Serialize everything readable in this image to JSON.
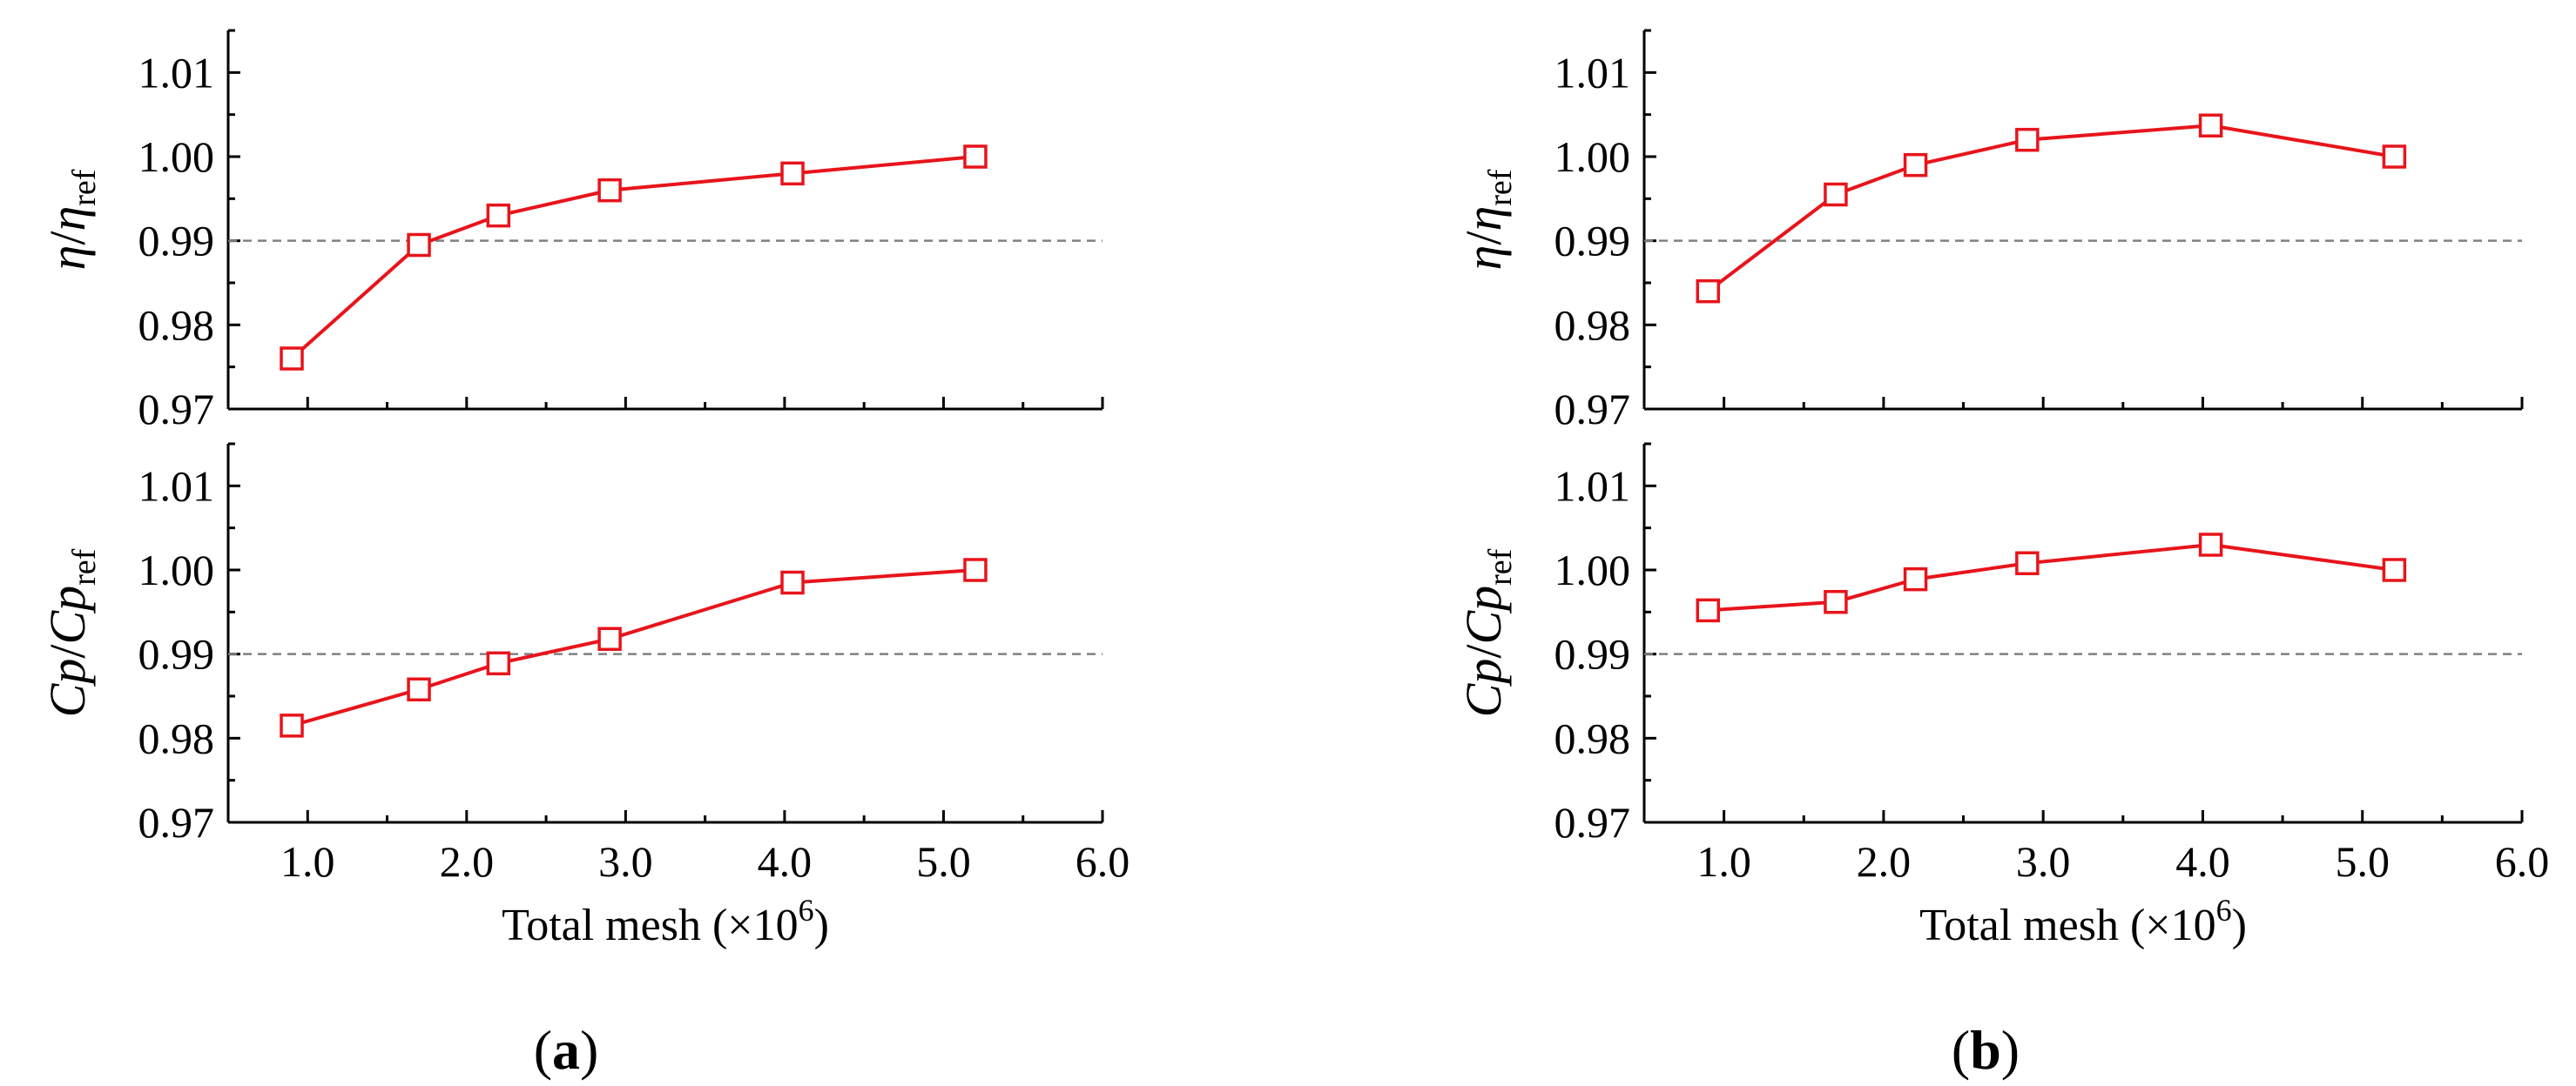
{
  "colors": {
    "series": "#e8141b",
    "reference": "#808080",
    "axis": "#000000"
  },
  "panels": [
    {
      "label_open": "(",
      "label_letter": "a",
      "label_close": ")",
      "xlabel_main": "Total mesh (×10",
      "xlabel_exp": "6",
      "xlabel_close": ")",
      "x_tick_labels": [
        "1.0",
        "2.0",
        "3.0",
        "4.0",
        "5.0",
        "6.0"
      ],
      "charts": [
        {
          "name": "efficiency",
          "ylabel_num": "η",
          "ylabel_slash": "/",
          "ylabel_den": "η",
          "ylabel_sub": "ref",
          "y_tick_labels": [
            "0.97",
            "0.98",
            "0.99",
            "1.00",
            "1.01"
          ]
        },
        {
          "name": "pressure-coefficient",
          "ylabel_num": "Cp",
          "ylabel_slash": "/",
          "ylabel_den": "Cp",
          "ylabel_sub": "ref",
          "y_tick_labels": [
            "0.97",
            "0.98",
            "0.99",
            "1.00",
            "1.01"
          ]
        }
      ]
    },
    {
      "label_open": "(",
      "label_letter": "b",
      "label_close": ")",
      "xlabel_main": "Total mesh (×10",
      "xlabel_exp": "6",
      "xlabel_close": ")",
      "x_tick_labels": [
        "1.0",
        "2.0",
        "3.0",
        "4.0",
        "5.0",
        "6.0"
      ],
      "charts": [
        {
          "name": "efficiency",
          "ylabel_num": "η",
          "ylabel_slash": "/",
          "ylabel_den": "η",
          "ylabel_sub": "ref",
          "y_tick_labels": [
            "0.97",
            "0.98",
            "0.99",
            "1.00",
            "1.01"
          ]
        },
        {
          "name": "pressure-coefficient",
          "ylabel_num": "Cp",
          "ylabel_slash": "/",
          "ylabel_den": "Cp",
          "ylabel_sub": "ref",
          "y_tick_labels": [
            "0.97",
            "0.98",
            "0.99",
            "1.00",
            "1.01"
          ]
        }
      ]
    }
  ],
  "chart_data": [
    {
      "panel": "a",
      "subplot": "top",
      "type": "line",
      "title": "",
      "xlabel": "Total mesh (×10^6)",
      "ylabel": "η/η_ref",
      "x": [
        0.9,
        1.7,
        2.2,
        2.9,
        4.05,
        5.2
      ],
      "y": [
        0.976,
        0.9895,
        0.993,
        0.996,
        0.998,
        1.0
      ],
      "xlim": [
        0.5,
        6.0
      ],
      "ylim": [
        0.97,
        1.015
      ],
      "reference_line": 0.99,
      "marker": "open-square"
    },
    {
      "panel": "a",
      "subplot": "bottom",
      "type": "line",
      "title": "",
      "xlabel": "Total mesh (×10^6)",
      "ylabel": "Cp/Cp_ref",
      "x": [
        0.9,
        1.7,
        2.2,
        2.9,
        4.05,
        5.2
      ],
      "y": [
        0.9815,
        0.9858,
        0.9889,
        0.9918,
        0.9985,
        1.0
      ],
      "xlim": [
        0.5,
        6.0
      ],
      "ylim": [
        0.97,
        1.015
      ],
      "reference_line": 0.99,
      "marker": "open-square"
    },
    {
      "panel": "b",
      "subplot": "top",
      "type": "line",
      "title": "",
      "xlabel": "Total mesh (×10^6)",
      "ylabel": "η/η_ref",
      "x": [
        0.9,
        1.7,
        2.2,
        2.9,
        4.05,
        5.2
      ],
      "y": [
        0.984,
        0.9955,
        0.999,
        1.002,
        1.0037,
        1.0
      ],
      "xlim": [
        0.5,
        6.0
      ],
      "ylim": [
        0.97,
        1.015
      ],
      "reference_line": 0.99,
      "marker": "open-square"
    },
    {
      "panel": "b",
      "subplot": "bottom",
      "type": "line",
      "title": "",
      "xlabel": "Total mesh (×10^6)",
      "ylabel": "Cp/Cp_ref",
      "x": [
        0.9,
        1.7,
        2.2,
        2.9,
        4.05,
        5.2
      ],
      "y": [
        0.9952,
        0.9962,
        0.9989,
        1.0008,
        1.003,
        1.0
      ],
      "xlim": [
        0.5,
        6.0
      ],
      "ylim": [
        0.97,
        1.015
      ],
      "reference_line": 0.99,
      "marker": "open-square"
    }
  ]
}
